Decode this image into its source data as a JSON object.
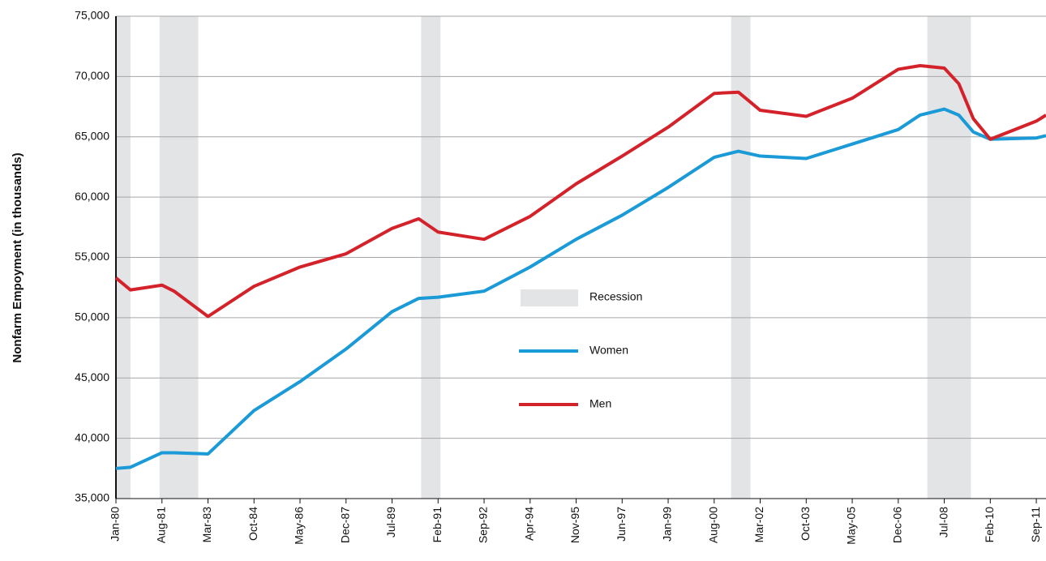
{
  "chart_data": {
    "type": "line",
    "y_label": "Nonfarm Empoyment (in thousands)",
    "x": [
      "Jan-80",
      "Jul-80",
      "Aug-81",
      "Jan-82",
      "Mar-83",
      "Oct-84",
      "May-86",
      "Dec-87",
      "Jul-89",
      "Jun-90",
      "Feb-91",
      "Sep-92",
      "Apr-94",
      "Nov-95",
      "Jun-97",
      "Jan-99",
      "Aug-00",
      "Jun-01",
      "Mar-02",
      "Oct-03",
      "May-05",
      "Dec-06",
      "Sep-07",
      "Jul-08",
      "Jan-09",
      "Jul-09",
      "Feb-10",
      "Sep-11",
      "Jan-12"
    ],
    "series": [
      {
        "name": "Women",
        "color": "#1a9ad6",
        "values": [
          37500,
          37600,
          38800,
          38800,
          38700,
          42300,
          44700,
          47400,
          50500,
          51600,
          51700,
          52200,
          54200,
          56500,
          58500,
          60800,
          63300,
          63800,
          63400,
          63200,
          64400,
          65600,
          66800,
          67300,
          66800,
          65400,
          64800,
          64900,
          65100
        ]
      },
      {
        "name": "Men",
        "color": "#d4222b",
        "values": [
          53300,
          52300,
          52700,
          52200,
          50100,
          52600,
          54200,
          55300,
          57400,
          58200,
          57100,
          56500,
          58400,
          61100,
          63400,
          65800,
          68600,
          68700,
          67200,
          66700,
          68200,
          70600,
          70900,
          70700,
          69400,
          66500,
          64800,
          66300,
          66800
        ]
      }
    ],
    "recession": {
      "name": "Recession",
      "color": "#e3e4e6",
      "periods": [
        [
          "Jan-80",
          "Jul-80"
        ],
        [
          "Jul-81",
          "Nov-82"
        ],
        [
          "Jul-90",
          "Mar-91"
        ],
        [
          "Mar-01",
          "Nov-01"
        ],
        [
          "Dec-07",
          "Jun-09"
        ]
      ]
    },
    "xlim": [
      "Jan-80",
      "Jan-12"
    ],
    "xticks": [
      "Jan-80",
      "Aug-81",
      "Mar-83",
      "Oct-84",
      "May-86",
      "Dec-87",
      "Jul-89",
      "Feb-91",
      "Sep-92",
      "Apr-94",
      "Nov-95",
      "Jun-97",
      "Jan-99",
      "Aug-00",
      "Mar-02",
      "Oct-03",
      "May-05",
      "Dec-06",
      "Jul-08",
      "Feb-10",
      "Sep-11"
    ],
    "ylim": [
      35000,
      75000
    ],
    "yticks": [
      {
        "value": 35000,
        "label": "35,000"
      },
      {
        "value": 40000,
        "label": "40,000"
      },
      {
        "value": 45000,
        "label": "45,000"
      },
      {
        "value": 50000,
        "label": "50,000"
      },
      {
        "value": 55000,
        "label": "55,000"
      },
      {
        "value": 60000,
        "label": "60,000"
      },
      {
        "value": 65000,
        "label": "65,000"
      },
      {
        "value": 70000,
        "label": "70,000"
      },
      {
        "value": 75000,
        "label": "75,000"
      }
    ],
    "grid": true
  }
}
